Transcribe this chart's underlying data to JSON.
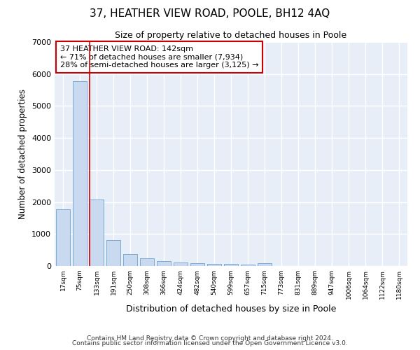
{
  "title": "37, HEATHER VIEW ROAD, POOLE, BH12 4AQ",
  "subtitle": "Size of property relative to detached houses in Poole",
  "xlabel": "Distribution of detached houses by size in Poole",
  "ylabel": "Number of detached properties",
  "bar_labels": [
    "17sqm",
    "75sqm",
    "133sqm",
    "191sqm",
    "250sqm",
    "308sqm",
    "366sqm",
    "424sqm",
    "482sqm",
    "540sqm",
    "599sqm",
    "657sqm",
    "715sqm",
    "773sqm",
    "831sqm",
    "889sqm",
    "947sqm",
    "1006sqm",
    "1064sqm",
    "1122sqm",
    "1180sqm"
  ],
  "bar_values": [
    1780,
    5780,
    2080,
    810,
    370,
    240,
    155,
    115,
    80,
    65,
    55,
    45,
    80,
    0,
    0,
    0,
    0,
    0,
    0,
    0,
    0
  ],
  "bar_color": "#c8d9f0",
  "bar_edge_color": "#7aaad4",
  "highlight_index": 2,
  "highlight_line_color": "#cc0000",
  "annotation_line1": "37 HEATHER VIEW ROAD: 142sqm",
  "annotation_line2": "← 71% of detached houses are smaller (7,934)",
  "annotation_line3": "28% of semi-detached houses are larger (3,125) →",
  "annotation_box_color": "#cc0000",
  "ylim": [
    0,
    7000
  ],
  "yticks": [
    0,
    1000,
    2000,
    3000,
    4000,
    5000,
    6000,
    7000
  ],
  "background_color": "#e8eef8",
  "footer_line1": "Contains HM Land Registry data © Crown copyright and database right 2024.",
  "footer_line2": "Contains public sector information licensed under the Open Government Licence v3.0."
}
